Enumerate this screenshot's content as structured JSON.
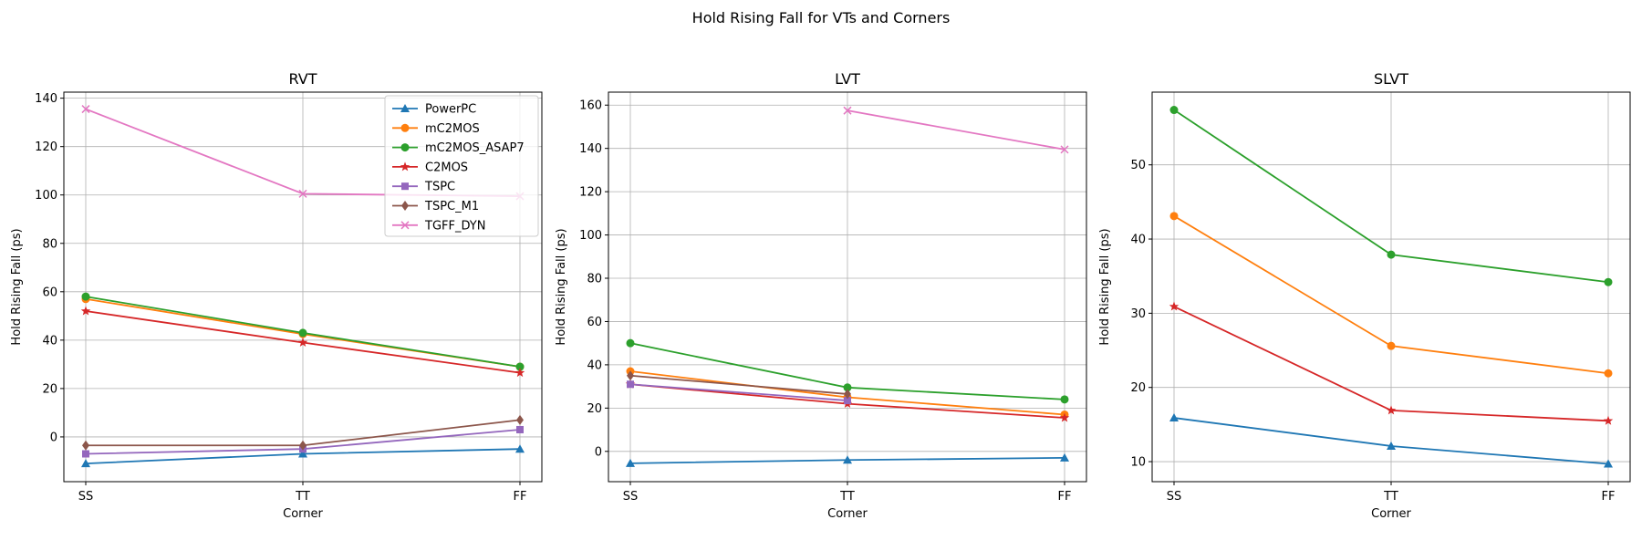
{
  "figure": {
    "title": "Hold Rising Fall for VTs and Corners"
  },
  "colors": {
    "PowerPC": "#1f77b4",
    "mC2MOS": "#ff7f0e",
    "mC2MOS_ASAP7": "#2ca02c",
    "C2MOS": "#d62728",
    "TSPC": "#9467bd",
    "TSPC_M1": "#8c564b",
    "TGFF_DYN": "#e377c2"
  },
  "markers": {
    "PowerPC": "triangle",
    "mC2MOS": "circle",
    "mC2MOS_ASAP7": "circle",
    "C2MOS": "star",
    "TSPC": "square",
    "TSPC_M1": "diamond",
    "TGFF_DYN": "x"
  },
  "chart_data": [
    {
      "type": "line",
      "title": "RVT",
      "xlabel": "Corner",
      "ylabel": "Hold Rising Fall (ps)",
      "categories": [
        "SS",
        "TT",
        "FF"
      ],
      "ylim": [
        -18.5,
        142.5
      ],
      "yticks": [
        0,
        20,
        40,
        60,
        80,
        100,
        120,
        140
      ],
      "grid": true,
      "legend": "upper right",
      "series": [
        {
          "name": "PowerPC",
          "values": [
            -11,
            -7,
            -5
          ]
        },
        {
          "name": "mC2MOS",
          "values": [
            57,
            42.5,
            29
          ]
        },
        {
          "name": "mC2MOS_ASAP7",
          "values": [
            58,
            43,
            29
          ]
        },
        {
          "name": "C2MOS",
          "values": [
            52,
            39,
            26.5
          ]
        },
        {
          "name": "TSPC",
          "values": [
            -7,
            -5,
            3
          ]
        },
        {
          "name": "TSPC_M1",
          "values": [
            -3.5,
            -3.5,
            7
          ]
        },
        {
          "name": "TGFF_DYN",
          "values": [
            135.5,
            100.5,
            99.5
          ]
        }
      ]
    },
    {
      "type": "line",
      "title": "LVT",
      "xlabel": "Corner",
      "ylabel": "Hold Rising Fall (ps)",
      "categories": [
        "SS",
        "TT",
        "FF"
      ],
      "ylim": [
        -14,
        166
      ],
      "yticks": [
        0,
        20,
        40,
        60,
        80,
        100,
        120,
        140,
        160
      ],
      "grid": true,
      "series": [
        {
          "name": "PowerPC",
          "values": [
            -5.5,
            -4,
            -3
          ]
        },
        {
          "name": "mC2MOS",
          "values": [
            37,
            25,
            17
          ]
        },
        {
          "name": "mC2MOS_ASAP7",
          "values": [
            50,
            29.5,
            24
          ]
        },
        {
          "name": "C2MOS",
          "values": [
            31,
            22,
            15.5
          ]
        },
        {
          "name": "TSPC",
          "values": [
            31,
            23.5,
            null
          ]
        },
        {
          "name": "TSPC_M1",
          "values": [
            35,
            26.5,
            null
          ]
        },
        {
          "name": "TGFF_DYN",
          "values": [
            null,
            157.5,
            139.5
          ]
        }
      ]
    },
    {
      "type": "line",
      "title": "SLVT",
      "xlabel": "Corner",
      "ylabel": "Hold Rising Fall (ps)",
      "categories": [
        "SS",
        "TT",
        "FF"
      ],
      "ylim": [
        7.3,
        59.8
      ],
      "yticks": [
        10,
        20,
        30,
        40,
        50
      ],
      "grid": true,
      "series": [
        {
          "name": "PowerPC",
          "values": [
            15.9,
            12.1,
            9.7
          ]
        },
        {
          "name": "mC2MOS",
          "values": [
            43.1,
            25.6,
            21.9
          ]
        },
        {
          "name": "mC2MOS_ASAP7",
          "values": [
            57.4,
            37.9,
            34.2
          ]
        },
        {
          "name": "C2MOS",
          "values": [
            30.9,
            16.9,
            15.5
          ]
        }
      ]
    }
  ]
}
